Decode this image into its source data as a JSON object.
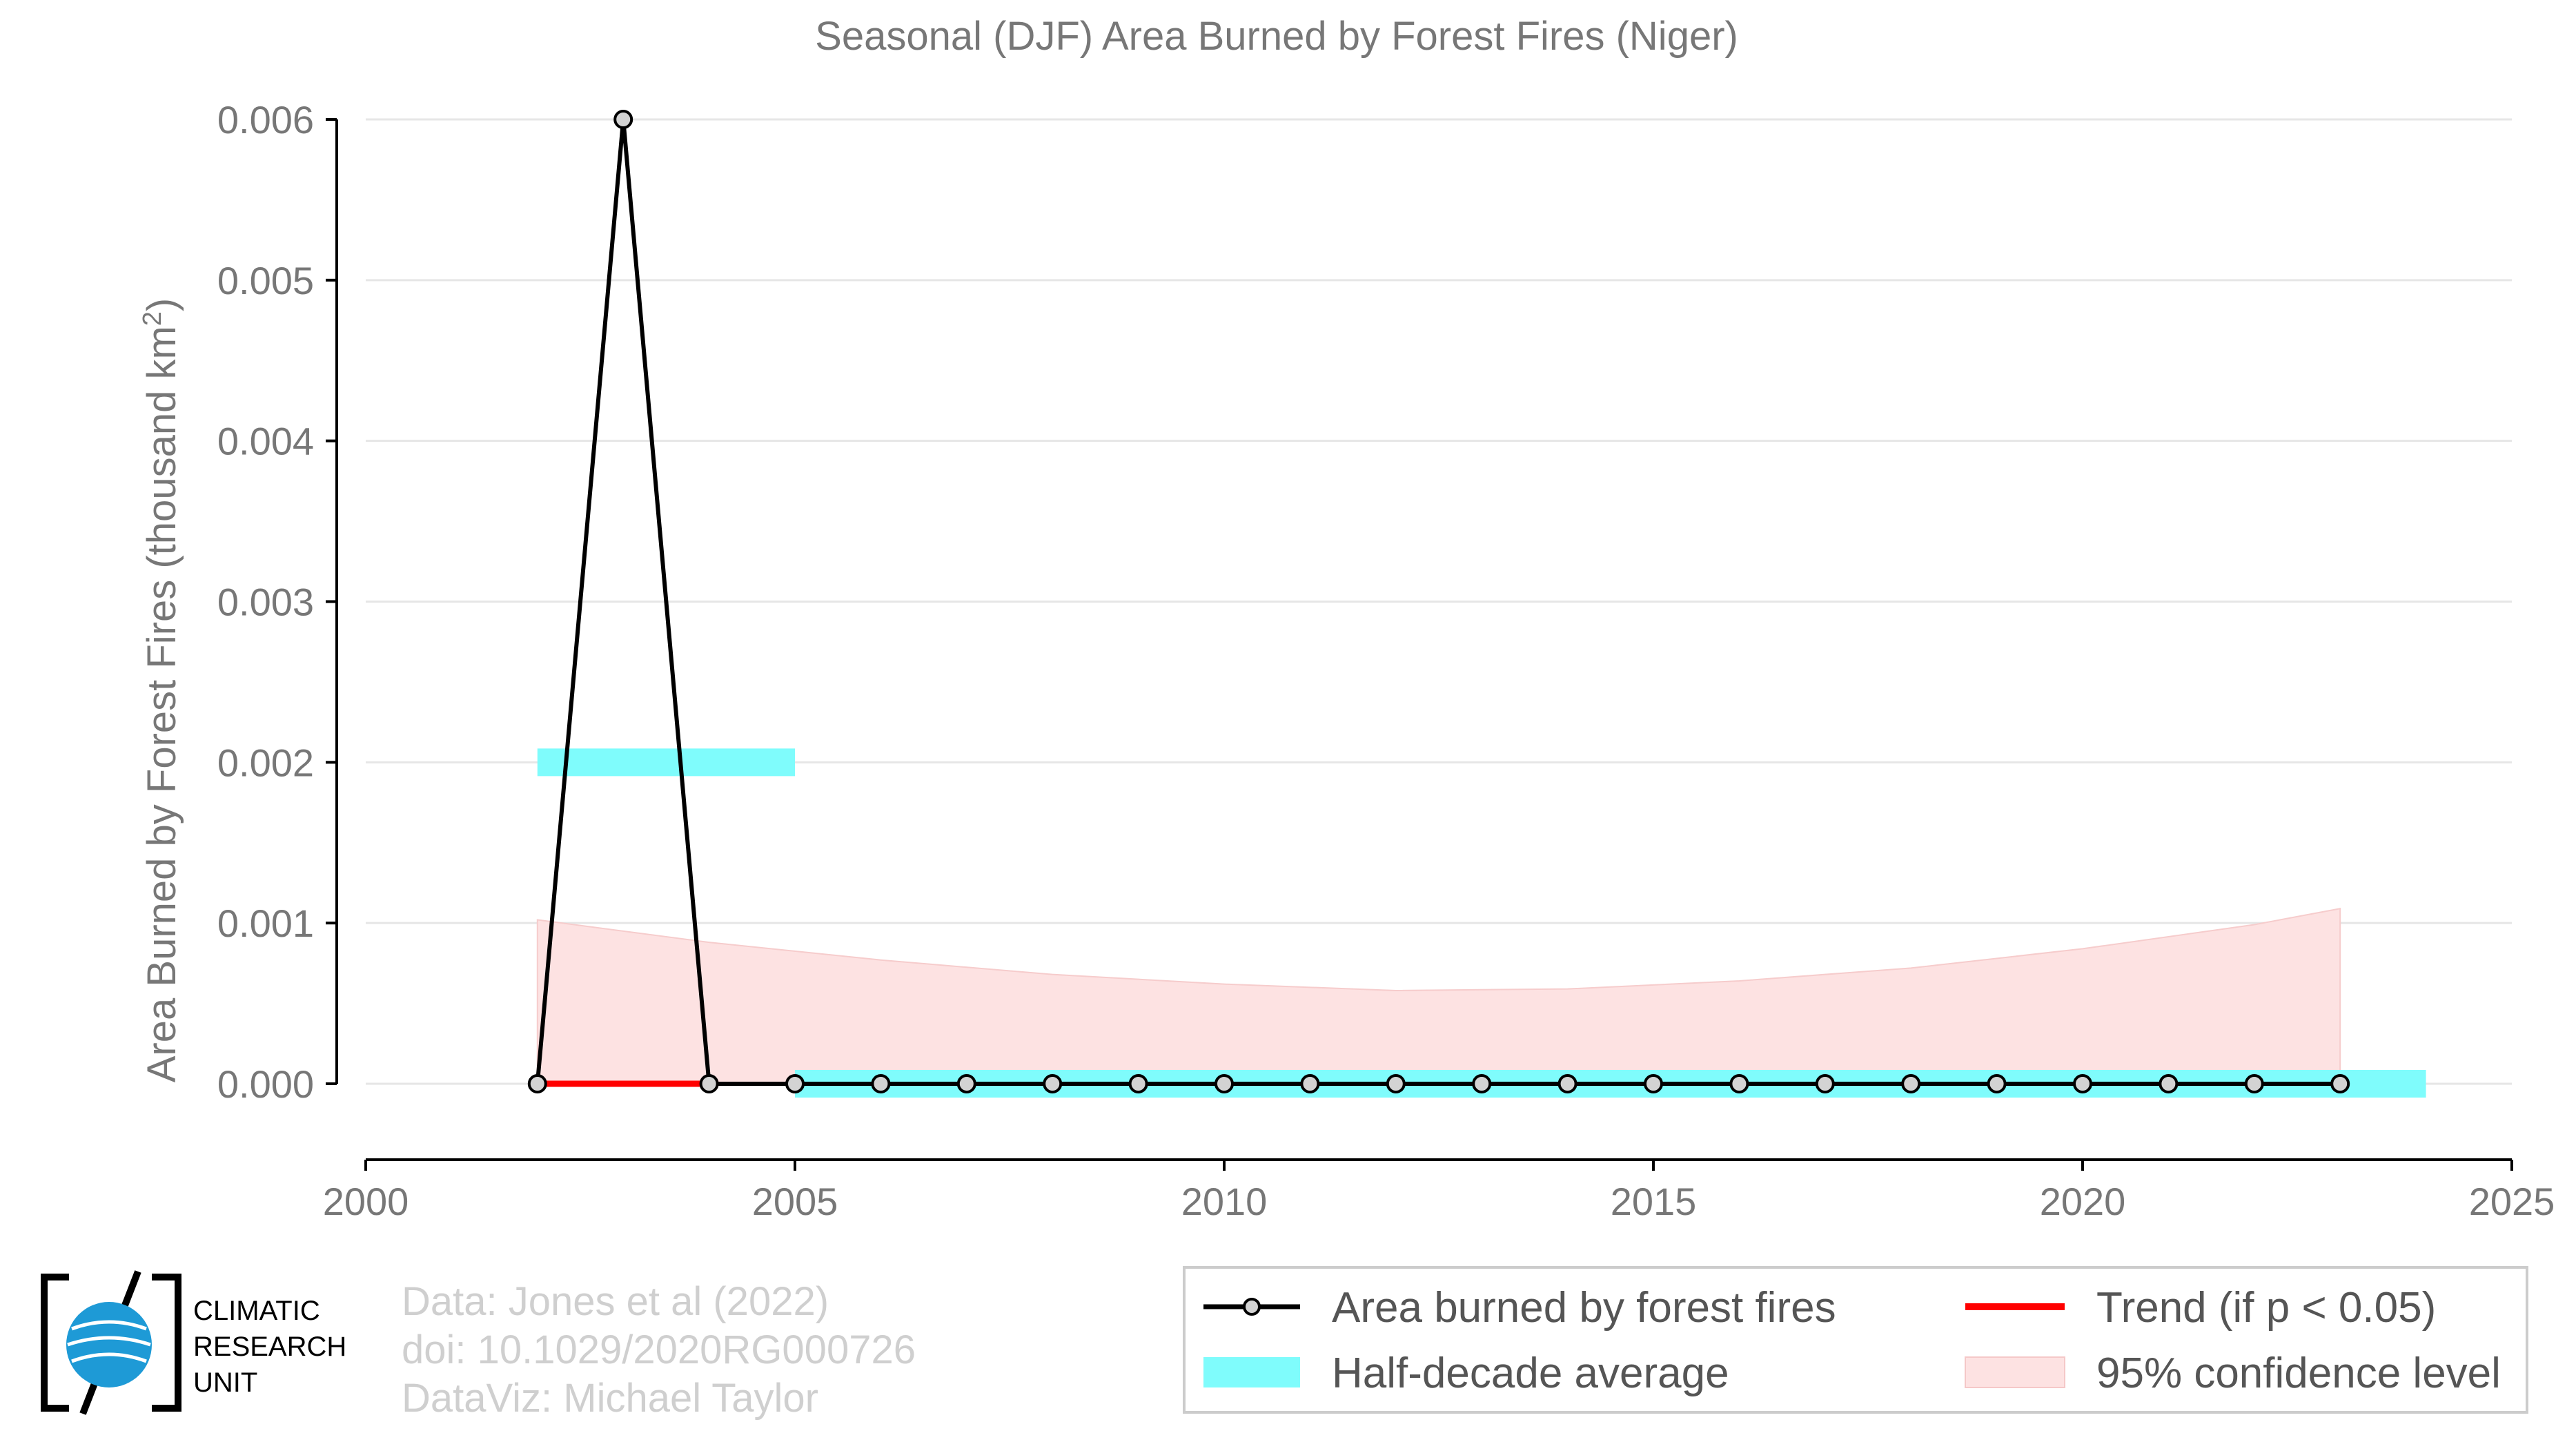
{
  "chart_data": {
    "type": "line",
    "title": "Seasonal (DJF) Area Burned by Forest Fires (Niger)",
    "ylabel": "Area Burned by Forest Fires (thousand km",
    "ylabel_sup": "2",
    "ylabel_close": ")",
    "xlim": [
      2000,
      2025
    ],
    "ylim": [
      -0.0005,
      0.006
    ],
    "x_ticks": [
      2000,
      2005,
      2010,
      2015,
      2020,
      2025
    ],
    "x_tick_labels": [
      "2000",
      "2005",
      "2010",
      "2015",
      "2020",
      "2025"
    ],
    "y_ticks": [
      0.0,
      0.001,
      0.002,
      0.003,
      0.004,
      0.005,
      0.006
    ],
    "y_tick_labels": [
      "0.000",
      "0.001",
      "0.002",
      "0.003",
      "0.004",
      "0.005",
      "0.006"
    ],
    "grid": true,
    "series": [
      {
        "name": "Area burned by forest fires",
        "x": [
          2002,
          2003,
          2004,
          2005,
          2006,
          2007,
          2008,
          2009,
          2010,
          2011,
          2012,
          2013,
          2014,
          2015,
          2016,
          2017,
          2018,
          2019,
          2020,
          2021,
          2022,
          2023
        ],
        "values": [
          0.0,
          0.006,
          0.0,
          0.0,
          0.0,
          0.0,
          0.0,
          0.0,
          0.0,
          0.0,
          0.0,
          0.0,
          0.0,
          0.0,
          0.0,
          0.0,
          0.0,
          0.0,
          0.0,
          0.0,
          0.0,
          0.0
        ]
      }
    ],
    "half_decade_average": [
      {
        "x_start": 2002,
        "x_end": 2005,
        "value": 0.002
      },
      {
        "x_start": 2005,
        "x_end": 2024,
        "value": 0.0
      }
    ],
    "trend": {
      "x_start": 2002,
      "x_end": 2004,
      "value": 0.0
    },
    "confidence_band": {
      "x": [
        2002,
        2004,
        2006,
        2008,
        2010,
        2012,
        2014,
        2016,
        2018,
        2020,
        2022,
        2023
      ],
      "upper": [
        0.00102,
        0.00088,
        0.00077,
        0.00068,
        0.00062,
        0.00058,
        0.00059,
        0.00064,
        0.00072,
        0.00084,
        0.00099,
        0.00109
      ],
      "lower": [
        0,
        0,
        0,
        0,
        0,
        0,
        0,
        0,
        0,
        0,
        0,
        0
      ]
    },
    "colors": {
      "line": "#000000",
      "marker_fill": "#d3d3d3",
      "half_decade": "#7ffcfc",
      "trend": "#ff0000",
      "confidence": "#fde2e2",
      "grid": "#e6e6e6",
      "axis": "#000000",
      "text": "#777777"
    },
    "legend": {
      "placement": "bottom-right",
      "items": [
        {
          "key": "line",
          "label": "Area burned by forest fires"
        },
        {
          "key": "trend",
          "label": "Trend (if p < 0.05)"
        },
        {
          "key": "half_decade",
          "label": "Half-decade average"
        },
        {
          "key": "confidence",
          "label": "95% confidence level"
        }
      ]
    }
  },
  "credits": {
    "line1": "Data: Jones et al (2022)",
    "line2": "doi: 10.1029/2020RG000726",
    "line3": "DataViz: Michael Taylor"
  },
  "logo": {
    "line1": "CLIMATIC",
    "line2": "RESEARCH",
    "line3": "UNIT"
  }
}
